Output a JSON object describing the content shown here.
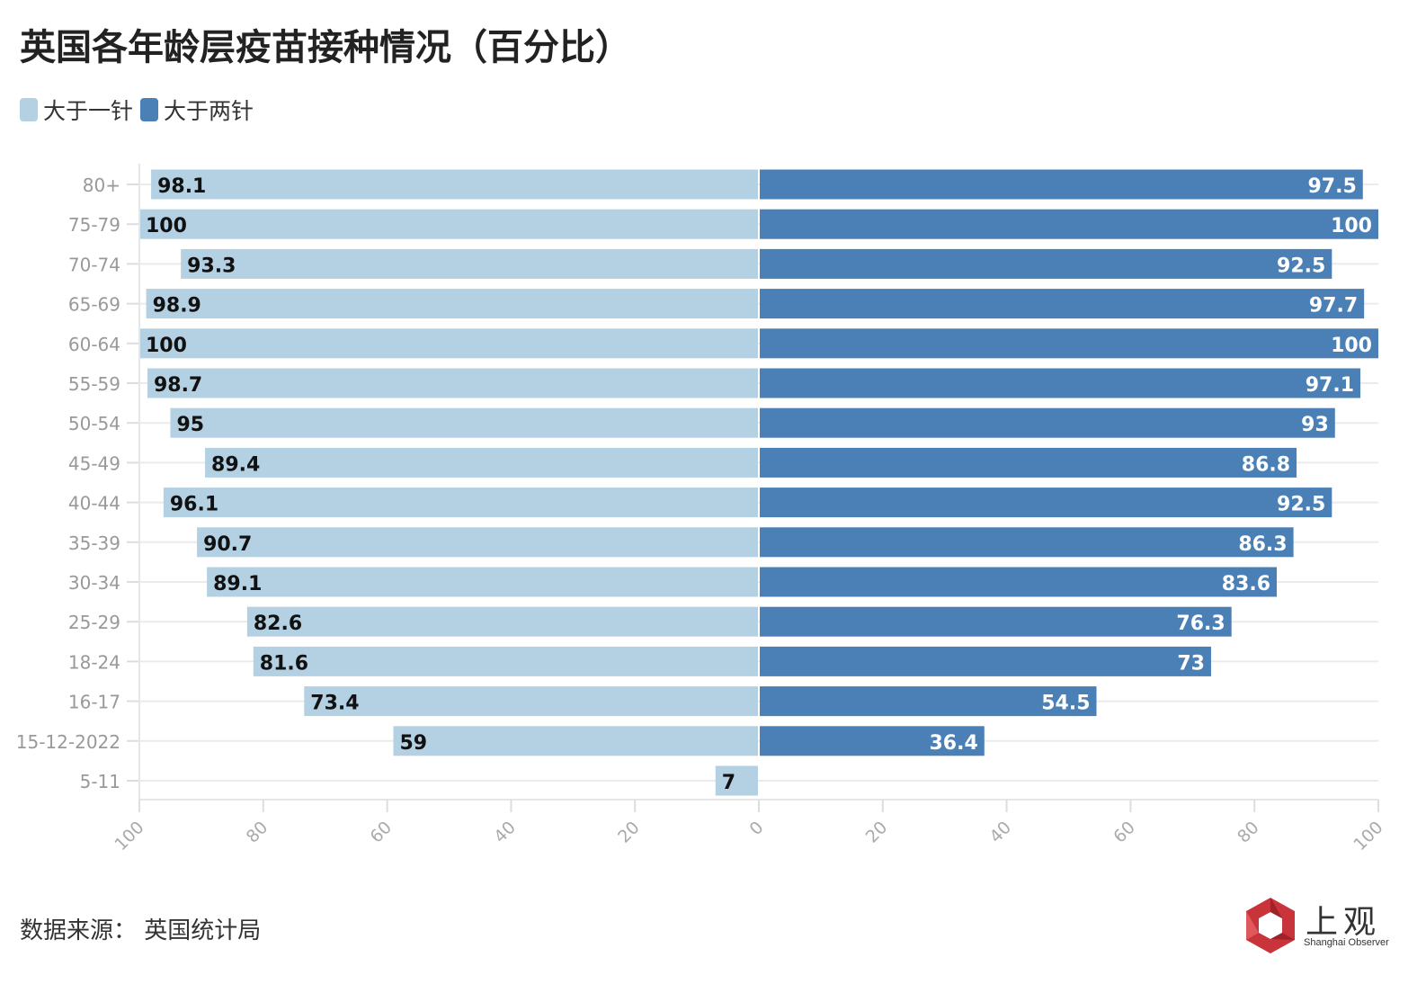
{
  "title": "英国各年龄层疫苗接种情况（百分比）",
  "legend": [
    {
      "label": "大于一针",
      "color": "#b4d0e3"
    },
    {
      "label": "大于两针",
      "color": "#4a80b5"
    }
  ],
  "footer": {
    "source": "数据来源：  英国统计局"
  },
  "logo": {
    "cn": "上观",
    "en": "Shanghai Observer",
    "color": "#c8343a"
  },
  "chart_data": {
    "type": "bar",
    "orientation": "horizontal-diverging",
    "categories": [
      "80+",
      "75-79",
      "70-74",
      "65-69",
      "60-64",
      "55-59",
      "50-54",
      "45-49",
      "40-44",
      "35-39",
      "30-34",
      "25-29",
      "18-24",
      "16-17",
      "15-12-2022",
      "5-11"
    ],
    "series": [
      {
        "name": "大于一针",
        "side": "left",
        "color": "#b4d0e3",
        "values": [
          98.1,
          100,
          93.3,
          98.9,
          100,
          98.7,
          95,
          89.4,
          96.1,
          90.7,
          89.1,
          82.6,
          81.6,
          73.4,
          59,
          7
        ],
        "labels": [
          "98.1",
          "100",
          "93.3",
          "98.9",
          "100",
          "98.7",
          "95",
          "89.4",
          "96.1",
          "90.7",
          "89.1",
          "82.6",
          "81.6",
          "73.4",
          "59",
          "7"
        ]
      },
      {
        "name": "大于两针",
        "side": "right",
        "color": "#4a80b5",
        "values": [
          97.5,
          100,
          92.5,
          97.7,
          100,
          97.1,
          93,
          86.8,
          92.5,
          86.3,
          83.6,
          76.3,
          73,
          54.5,
          36.4,
          null
        ],
        "labels": [
          "97.5",
          "100",
          "92.5",
          "97.7",
          "100",
          "97.1",
          "93",
          "86.8",
          "92.5",
          "86.3",
          "83.6",
          "76.3",
          "73",
          "54.5",
          "36.4",
          ""
        ]
      }
    ],
    "xlim": [
      -100,
      100
    ],
    "x_ticks": [
      "100",
      "80",
      "60",
      "40",
      "20",
      "0",
      "20",
      "40",
      "60",
      "80",
      "100"
    ],
    "grid": true,
    "legend_position": "top-left"
  }
}
